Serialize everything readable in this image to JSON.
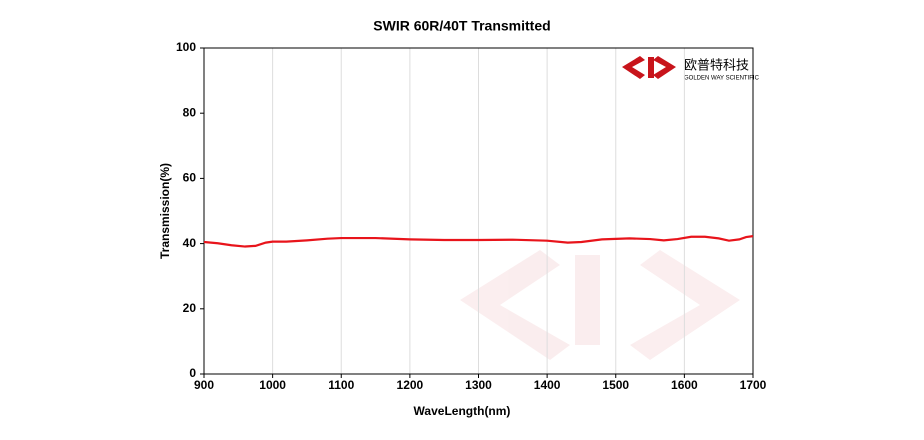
{
  "chart_data": {
    "type": "line",
    "title": "SWIR 60R/40T Transmitted",
    "x_label": "WaveLength(nm)",
    "y_label": "Transmission(%)",
    "annotations": [
      "欧普特科技",
      "GOLDEN WAY SCIENTIFIC"
    ],
    "x": [
      900,
      920,
      940,
      960,
      975,
      990,
      1000,
      1020,
      1050,
      1080,
      1100,
      1150,
      1200,
      1250,
      1300,
      1350,
      1400,
      1430,
      1450,
      1480,
      1520,
      1550,
      1570,
      1590,
      1610,
      1630,
      1650,
      1665,
      1680,
      1690,
      1700
    ],
    "series": [
      {
        "color": "#e8141b",
        "values": [
          40.5,
          40.1,
          39.5,
          39.1,
          39.3,
          40.3,
          40.6,
          40.6,
          41.0,
          41.5,
          41.7,
          41.7,
          41.3,
          41.1,
          41.1,
          41.2,
          40.9,
          40.3,
          40.5,
          41.3,
          41.6,
          41.4,
          41.0,
          41.4,
          42.1,
          42.1,
          41.6,
          40.9,
          41.3,
          42.0,
          42.3
        ]
      }
    ],
    "xlim": [
      900,
      1700
    ],
    "xticks": [
      900,
      1000,
      1100,
      1200,
      1300,
      1400,
      1500,
      1600,
      1700
    ],
    "ylim": [
      0,
      100
    ],
    "yticks": [
      0,
      20,
      40,
      60,
      80,
      100
    ],
    "grid": "x"
  }
}
